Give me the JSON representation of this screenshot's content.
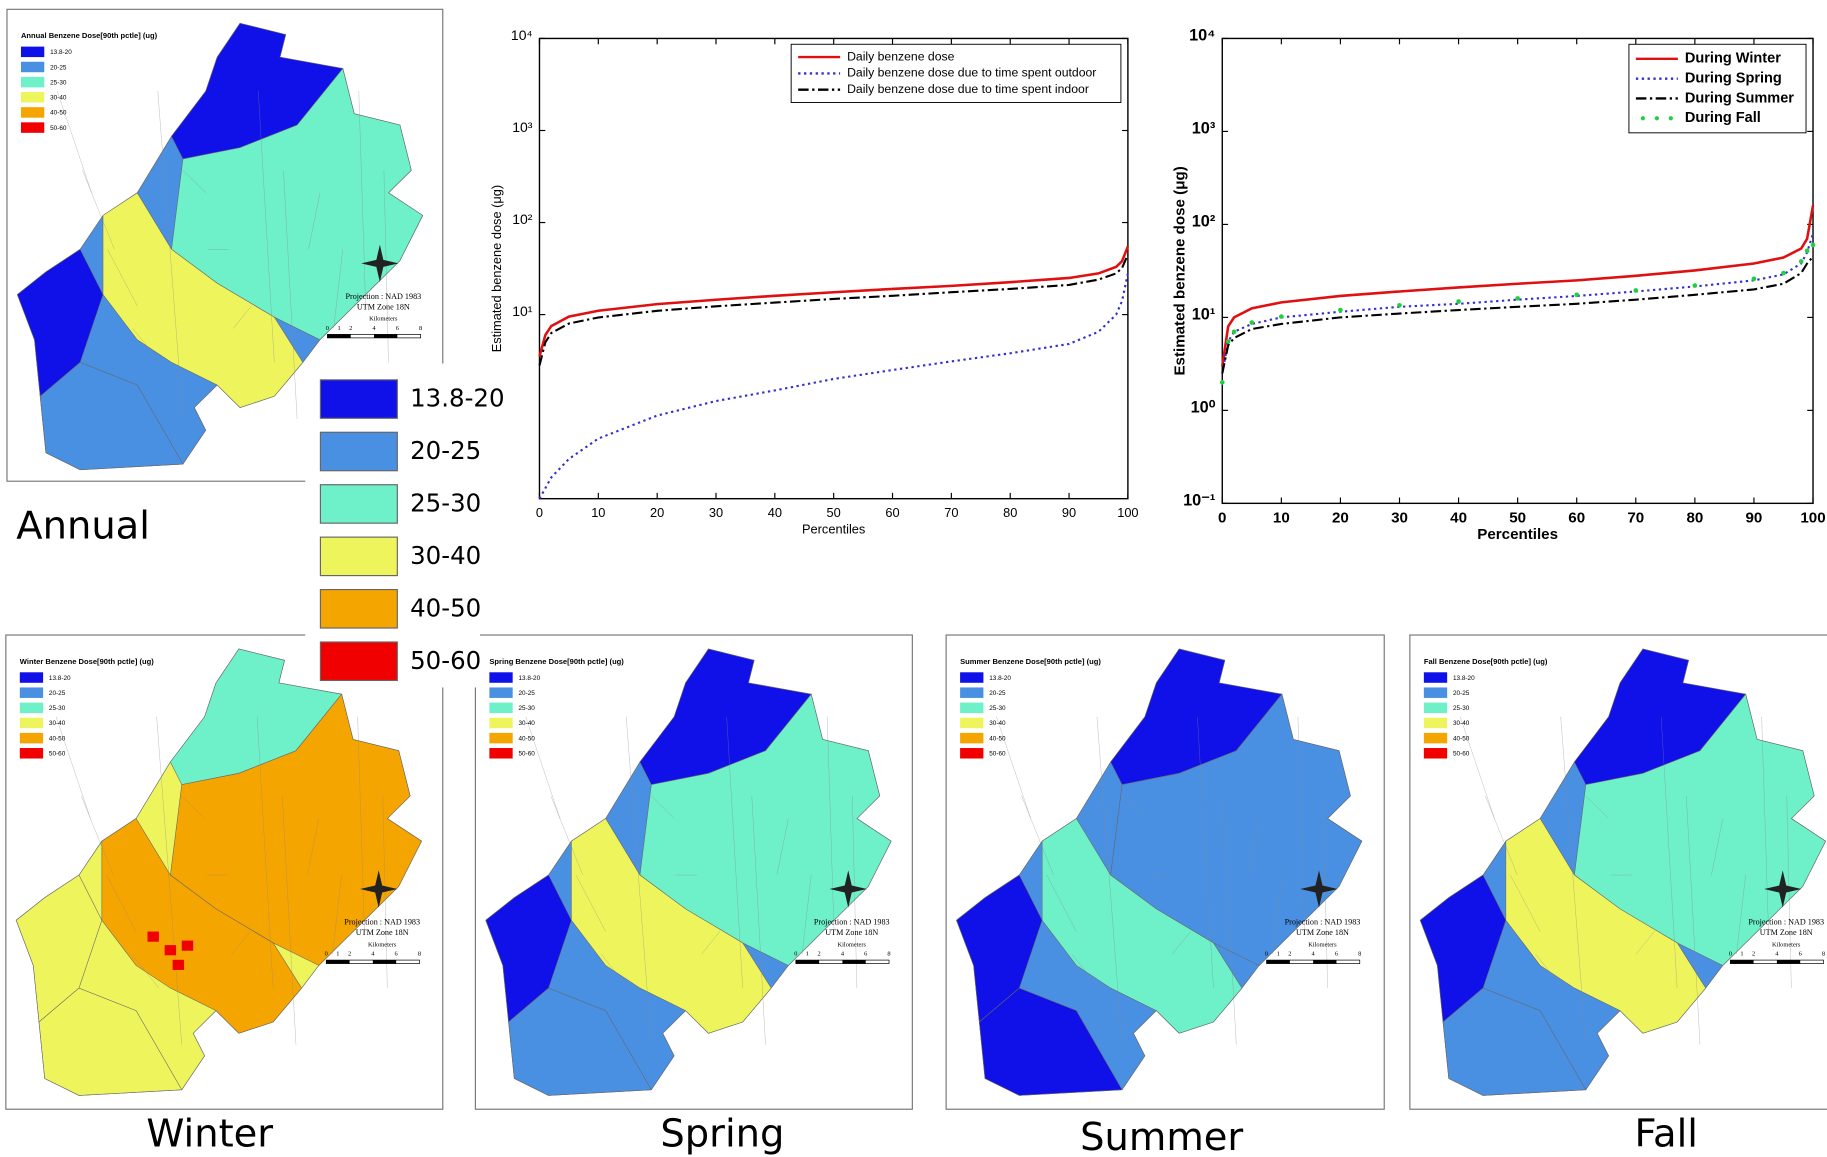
{
  "chart_data": [
    {
      "type": "line",
      "log_y": true,
      "x_label": "Percentiles",
      "y_label": "Estimated benzene dose (μg)",
      "x": [
        0,
        1,
        2,
        5,
        10,
        20,
        30,
        40,
        50,
        60,
        70,
        80,
        90,
        95,
        98,
        99,
        100
      ],
      "series": [
        {
          "name": "Daily benzene dose",
          "color": "#e01010",
          "linestyle": "solid",
          "values": [
            3.5,
            6,
            7.5,
            9.5,
            11,
            13,
            14.5,
            16,
            17.5,
            19,
            20.5,
            22.5,
            25,
            28,
            33,
            38,
            55
          ]
        },
        {
          "name": "Daily benzene dose due to time spent outdoor",
          "color": "#3030d0",
          "linestyle": "dotted",
          "values": [
            0.1,
            0.13,
            0.17,
            0.27,
            0.45,
            0.8,
            1.15,
            1.5,
            2,
            2.5,
            3.1,
            3.8,
            4.8,
            6.5,
            10,
            14,
            28
          ]
        },
        {
          "name": "Daily benzene dose due to time spent indoor",
          "color": "#000000",
          "linestyle": "dashdot",
          "values": [
            2.8,
            5,
            6.3,
            8,
            9.3,
            11,
            12.3,
            13.5,
            14.8,
            16,
            17.5,
            19,
            21,
            24,
            28,
            32,
            45
          ]
        }
      ],
      "xlim": [
        0,
        100
      ],
      "xticks": [
        0,
        10,
        20,
        30,
        40,
        50,
        60,
        70,
        80,
        90,
        100
      ],
      "ylim": [
        0.1,
        10000
      ],
      "yticks": [
        {
          "value": 10,
          "label": "10¹"
        },
        {
          "value": 100,
          "label": "10²"
        },
        {
          "value": 1000,
          "label": "10³"
        },
        {
          "value": 10000,
          "label": "10⁴"
        }
      ],
      "legend": "upper right",
      "grid": false
    },
    {
      "type": "line",
      "log_y": true,
      "x_label": "Percentiles",
      "y_label": "Estimated benzene dose (μg)",
      "x": [
        0,
        1,
        2,
        5,
        10,
        20,
        30,
        40,
        50,
        60,
        70,
        80,
        90,
        95,
        98,
        99,
        100
      ],
      "series": [
        {
          "name": "During Winter",
          "color": "#e01010",
          "linestyle": "solid",
          "values": [
            3,
            8,
            10,
            12.5,
            14.5,
            17,
            19,
            21,
            23,
            25,
            28,
            32,
            38,
            44,
            55,
            70,
            160
          ]
        },
        {
          "name": "During Spring",
          "color": "#3030d0",
          "linestyle": "dotted",
          "values": [
            2.5,
            5.5,
            7,
            8.5,
            10,
            11.5,
            13,
            14,
            15.5,
            17,
            19,
            21.5,
            25,
            29,
            38,
            50,
            80
          ]
        },
        {
          "name": "During Summer",
          "color": "#000000",
          "linestyle": "dashdot",
          "values": [
            2.5,
            5,
            6,
            7.5,
            8.5,
            10,
            11,
            12,
            13,
            14,
            15.5,
            17.5,
            20,
            23,
            30,
            38,
            45
          ]
        },
        {
          "name": "During Fall",
          "color": "#20d040",
          "linestyle": "markers",
          "values": [
            2,
            5.5,
            7,
            8.8,
            10.2,
            12,
            13.5,
            14.8,
            16,
            17.5,
            19.5,
            22,
            26,
            30,
            40,
            52,
            60
          ]
        }
      ],
      "xlim": [
        0,
        100
      ],
      "xticks": [
        0,
        10,
        20,
        30,
        40,
        50,
        60,
        70,
        80,
        90,
        100
      ],
      "ylim": [
        0.1,
        10000
      ],
      "yticks": [
        {
          "value": 0.1,
          "label": "10⁻¹"
        },
        {
          "value": 1,
          "label": "10⁰"
        },
        {
          "value": 10,
          "label": "10¹"
        },
        {
          "value": 100,
          "label": "10²"
        },
        {
          "value": 1000,
          "label": "10³"
        },
        {
          "value": 10000,
          "label": "10⁴"
        }
      ],
      "legend": "upper right",
      "grid": false
    }
  ],
  "classes": [
    {
      "label": "13.8-20",
      "color": "#1010e8"
    },
    {
      "label": "20-25",
      "color": "#4a90e2"
    },
    {
      "label": "25-30",
      "color": "#6ef0c8"
    },
    {
      "label": "30-40",
      "color": "#eef55c"
    },
    {
      "label": "40-50",
      "color": "#f5a500"
    },
    {
      "label": "50-60",
      "color": "#f00000"
    }
  ],
  "maps": [
    {
      "title": "Annual Benzene Dose[90th pctle] (ug)",
      "caption": "Annual"
    },
    {
      "title": "Winter Benzene Dose[90th pctle] (ug)",
      "caption": "Winter"
    },
    {
      "title": "Spring Benzene Dose[90th pctle] (ug)",
      "caption": "Spring"
    },
    {
      "title": "Summer Benzene Dose[90th pctle] (ug)",
      "caption": "Summer"
    },
    {
      "title": "Fall Benzene Dose[90th pctle] (ug)",
      "caption": "Fall"
    }
  ],
  "projection": [
    "Projection : NAD 1983",
    "UTM Zone 18N"
  ],
  "scale": {
    "label": "Kilometers",
    "ticks": [
      0,
      1,
      2,
      4,
      6,
      8
    ]
  }
}
